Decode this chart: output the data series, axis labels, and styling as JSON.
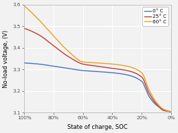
{
  "title": "",
  "xlabel": "State of charge, SOC",
  "ylabel": "No-load voltage, (V)",
  "xlim": [
    0,
    1.0
  ],
  "ylim": [
    3.1,
    3.6
  ],
  "xticks": [
    1.0,
    0.8,
    0.6,
    0.4,
    0.2,
    0.0
  ],
  "xticklabels": [
    "100%",
    "80%",
    "60%",
    "40%",
    "20%",
    "0%"
  ],
  "yticks": [
    3.1,
    3.2,
    3.3,
    3.4,
    3.5,
    3.6
  ],
  "legend_labels": [
    "0° C",
    "25° C",
    "60° C"
  ],
  "line_colors": [
    "#4472c4",
    "#c0392b",
    "#e8a020"
  ],
  "background_color": "#f2f2f2",
  "grid_color": "#ffffff",
  "label_fontsize": 6.0,
  "tick_fontsize": 5.2,
  "legend_fontsize": 5.2
}
